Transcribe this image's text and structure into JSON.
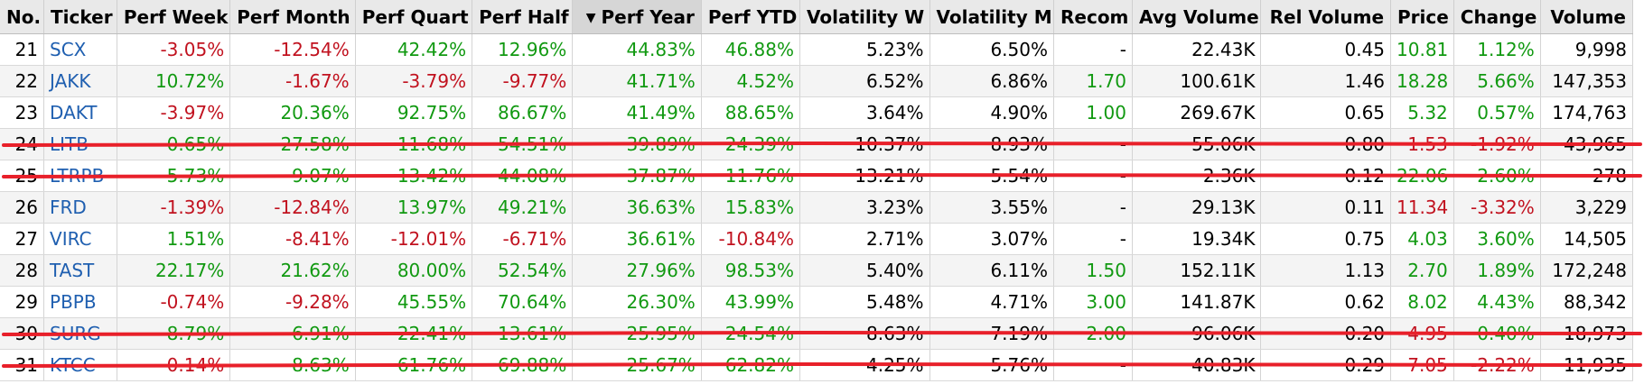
{
  "columns": [
    {
      "key": "no",
      "label": "No.",
      "align": "left"
    },
    {
      "key": "ticker",
      "label": "Ticker",
      "align": "left"
    },
    {
      "key": "perf_week",
      "label": "Perf Week",
      "align": "right"
    },
    {
      "key": "perf_month",
      "label": "Perf Month",
      "align": "right"
    },
    {
      "key": "perf_quart",
      "label": "Perf Quart",
      "align": "right"
    },
    {
      "key": "perf_half",
      "label": "Perf Half",
      "align": "right"
    },
    {
      "key": "perf_year",
      "label": "Perf Year",
      "align": "right",
      "sorted": "desc"
    },
    {
      "key": "perf_ytd",
      "label": "Perf YTD",
      "align": "right"
    },
    {
      "key": "vol_w",
      "label": "Volatility W",
      "align": "right"
    },
    {
      "key": "vol_m",
      "label": "Volatility M",
      "align": "right"
    },
    {
      "key": "recom",
      "label": "Recom",
      "align": "right"
    },
    {
      "key": "avg_volume",
      "label": "Avg Volume",
      "align": "right"
    },
    {
      "key": "rel_volume",
      "label": "Rel Volume",
      "align": "right"
    },
    {
      "key": "price",
      "label": "Price",
      "align": "right"
    },
    {
      "key": "change",
      "label": "Change",
      "align": "right"
    },
    {
      "key": "volume",
      "label": "Volume",
      "align": "right"
    }
  ],
  "sort_indicator": "▼",
  "colors": {
    "positive": "#119911",
    "negative": "#c1121f",
    "link": "#1f5fb0",
    "strike": "#e8202a"
  },
  "rows": [
    {
      "no": "21",
      "ticker": "SCX",
      "perf_week": "-3.05%",
      "perf_month": "-12.54%",
      "perf_quart": "42.42%",
      "perf_half": "12.96%",
      "perf_year": "44.83%",
      "perf_ytd": "46.88%",
      "vol_w": "5.23%",
      "vol_m": "6.50%",
      "recom": "-",
      "avg_volume": "22.43K",
      "rel_volume": "0.45",
      "price": "10.81",
      "change": "1.12%",
      "volume": "9,998",
      "price_dir": "pos",
      "struck": false
    },
    {
      "no": "22",
      "ticker": "JAKK",
      "perf_week": "10.72%",
      "perf_month": "-1.67%",
      "perf_quart": "-3.79%",
      "perf_half": "-9.77%",
      "perf_year": "41.71%",
      "perf_ytd": "4.52%",
      "vol_w": "6.52%",
      "vol_m": "6.86%",
      "recom": "1.70",
      "avg_volume": "100.61K",
      "rel_volume": "1.46",
      "price": "18.28",
      "change": "5.66%",
      "volume": "147,353",
      "price_dir": "pos",
      "struck": false
    },
    {
      "no": "23",
      "ticker": "DAKT",
      "perf_week": "-3.97%",
      "perf_month": "20.36%",
      "perf_quart": "92.75%",
      "perf_half": "86.67%",
      "perf_year": "41.49%",
      "perf_ytd": "88.65%",
      "vol_w": "3.64%",
      "vol_m": "4.90%",
      "recom": "1.00",
      "avg_volume": "269.67K",
      "rel_volume": "0.65",
      "price": "5.32",
      "change": "0.57%",
      "volume": "174,763",
      "price_dir": "pos",
      "struck": false
    },
    {
      "no": "24",
      "ticker": "LITB",
      "perf_week": "0.65%",
      "perf_month": "27.58%",
      "perf_quart": "11.68%",
      "perf_half": "54.51%",
      "perf_year": "39.89%",
      "perf_ytd": "24.39%",
      "vol_w": "10.37%",
      "vol_m": "8.93%",
      "recom": "-",
      "avg_volume": "55.06K",
      "rel_volume": "0.80",
      "price": "1.53",
      "change": "-1.92%",
      "volume": "43,965",
      "price_dir": "neg",
      "struck": true
    },
    {
      "no": "25",
      "ticker": "LTRPB",
      "perf_week": "5.73%",
      "perf_month": "9.07%",
      "perf_quart": "13.42%",
      "perf_half": "44.08%",
      "perf_year": "37.87%",
      "perf_ytd": "11.76%",
      "vol_w": "13.21%",
      "vol_m": "5.54%",
      "recom": "-",
      "avg_volume": "2.36K",
      "rel_volume": "0.12",
      "price": "22.06",
      "change": "2.60%",
      "volume": "278",
      "price_dir": "pos",
      "struck": true
    },
    {
      "no": "26",
      "ticker": "FRD",
      "perf_week": "-1.39%",
      "perf_month": "-12.84%",
      "perf_quart": "13.97%",
      "perf_half": "49.21%",
      "perf_year": "36.63%",
      "perf_ytd": "15.83%",
      "vol_w": "3.23%",
      "vol_m": "3.55%",
      "recom": "-",
      "avg_volume": "29.13K",
      "rel_volume": "0.11",
      "price": "11.34",
      "change": "-3.32%",
      "volume": "3,229",
      "price_dir": "neg",
      "struck": false
    },
    {
      "no": "27",
      "ticker": "VIRC",
      "perf_week": "1.51%",
      "perf_month": "-8.41%",
      "perf_quart": "-12.01%",
      "perf_half": "-6.71%",
      "perf_year": "36.61%",
      "perf_ytd": "-10.84%",
      "vol_w": "2.71%",
      "vol_m": "3.07%",
      "recom": "-",
      "avg_volume": "19.34K",
      "rel_volume": "0.75",
      "price": "4.03",
      "change": "3.60%",
      "volume": "14,505",
      "price_dir": "pos",
      "struck": false
    },
    {
      "no": "28",
      "ticker": "TAST",
      "perf_week": "22.17%",
      "perf_month": "21.62%",
      "perf_quart": "80.00%",
      "perf_half": "52.54%",
      "perf_year": "27.96%",
      "perf_ytd": "98.53%",
      "vol_w": "5.40%",
      "vol_m": "6.11%",
      "recom": "1.50",
      "avg_volume": "152.11K",
      "rel_volume": "1.13",
      "price": "2.70",
      "change": "1.89%",
      "volume": "172,248",
      "price_dir": "pos",
      "struck": false
    },
    {
      "no": "29",
      "ticker": "PBPB",
      "perf_week": "-0.74%",
      "perf_month": "-9.28%",
      "perf_quart": "45.55%",
      "perf_half": "70.64%",
      "perf_year": "26.30%",
      "perf_ytd": "43.99%",
      "vol_w": "5.48%",
      "vol_m": "4.71%",
      "recom": "3.00",
      "avg_volume": "141.87K",
      "rel_volume": "0.62",
      "price": "8.02",
      "change": "4.43%",
      "volume": "88,342",
      "price_dir": "pos",
      "struck": false
    },
    {
      "no": "30",
      "ticker": "SURG",
      "perf_week": "8.79%",
      "perf_month": "6.91%",
      "perf_quart": "22.41%",
      "perf_half": "13.61%",
      "perf_year": "25.95%",
      "perf_ytd": "24.54%",
      "vol_w": "8.63%",
      "vol_m": "7.19%",
      "recom": "2.00",
      "avg_volume": "96.06K",
      "rel_volume": "0.20",
      "price": "4.95",
      "change": "0.40%",
      "volume": "18,973",
      "price_dir": "neg",
      "struck": true
    },
    {
      "no": "31",
      "ticker": "KTCC",
      "perf_week": "-0.14%",
      "perf_month": "8.63%",
      "perf_quart": "61.76%",
      "perf_half": "69.88%",
      "perf_year": "25.67%",
      "perf_ytd": "62.82%",
      "vol_w": "4.25%",
      "vol_m": "5.76%",
      "recom": "-",
      "avg_volume": "40.83K",
      "rel_volume": "0.29",
      "price": "7.05",
      "change": "-2.22%",
      "volume": "11,935",
      "price_dir": "neg",
      "struck": true
    }
  ]
}
